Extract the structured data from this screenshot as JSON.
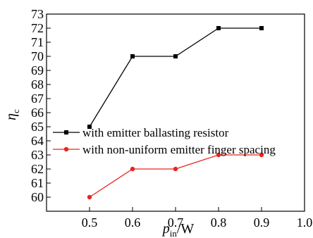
{
  "chart_data": {
    "type": "line",
    "xlabel": {
      "main": "p",
      "sub": "in",
      "suffix": "/W"
    },
    "ylabel": {
      "main": "η",
      "sub": "c"
    },
    "xlim": [
      0.4,
      1.0
    ],
    "ylim": [
      59,
      73
    ],
    "xticks": [
      "0.5",
      "0.6",
      "0.7",
      "0.8",
      "0.9",
      "1.0"
    ],
    "yticks": [
      "60",
      "61",
      "62",
      "63",
      "64",
      "65",
      "66",
      "67",
      "68",
      "69",
      "70",
      "71",
      "72",
      "73"
    ],
    "grid": false,
    "legend_position": "center-left",
    "x": [
      0.5,
      0.6,
      0.7,
      0.8,
      0.9
    ],
    "series": [
      {
        "name": "with emitter ballasting resistor",
        "color": "#000000",
        "marker": "square",
        "values": [
          65,
          70,
          70,
          72,
          72
        ]
      },
      {
        "name": "with non-uniform emitter finger spacing",
        "color": "#e8251f",
        "marker": "circle",
        "values": [
          60,
          62,
          62,
          63,
          63
        ]
      }
    ]
  }
}
